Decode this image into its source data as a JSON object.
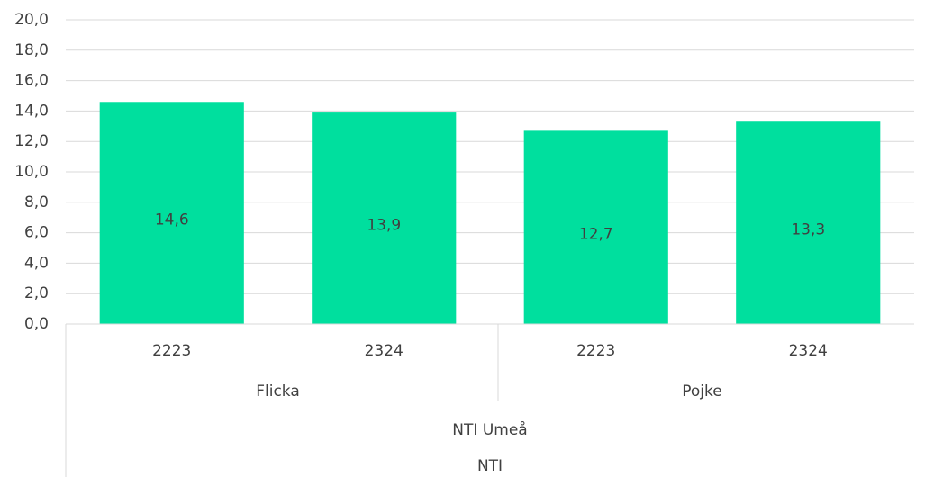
{
  "chart_data": {
    "type": "bar",
    "groups": [
      {
        "name": "Flicka",
        "categories": [
          "2223",
          "2324"
        ],
        "values": [
          14.6,
          13.9
        ],
        "value_labels": [
          "14,6",
          "13,9"
        ]
      },
      {
        "name": "Pojke",
        "categories": [
          "2223",
          "2324"
        ],
        "values": [
          12.7,
          13.3
        ],
        "value_labels": [
          "12,7",
          "13,3"
        ]
      }
    ],
    "outer_categories": [
      "NTI Umeå",
      "NTI"
    ],
    "color": "#00df9e",
    "ylim": [
      0,
      20
    ],
    "yticks": [
      {
        "value": 0,
        "label": "0,0"
      },
      {
        "value": 2,
        "label": "2,0"
      },
      {
        "value": 4,
        "label": "4,0"
      },
      {
        "value": 6,
        "label": "6,0"
      },
      {
        "value": 8,
        "label": "8,0"
      },
      {
        "value": 10,
        "label": "10,0"
      },
      {
        "value": 12,
        "label": "12,0"
      },
      {
        "value": 14,
        "label": "14,0"
      },
      {
        "value": 16,
        "label": "16,0"
      },
      {
        "value": 18,
        "label": "18,0"
      },
      {
        "value": 20,
        "label": "20,0"
      }
    ],
    "grid": true
  }
}
